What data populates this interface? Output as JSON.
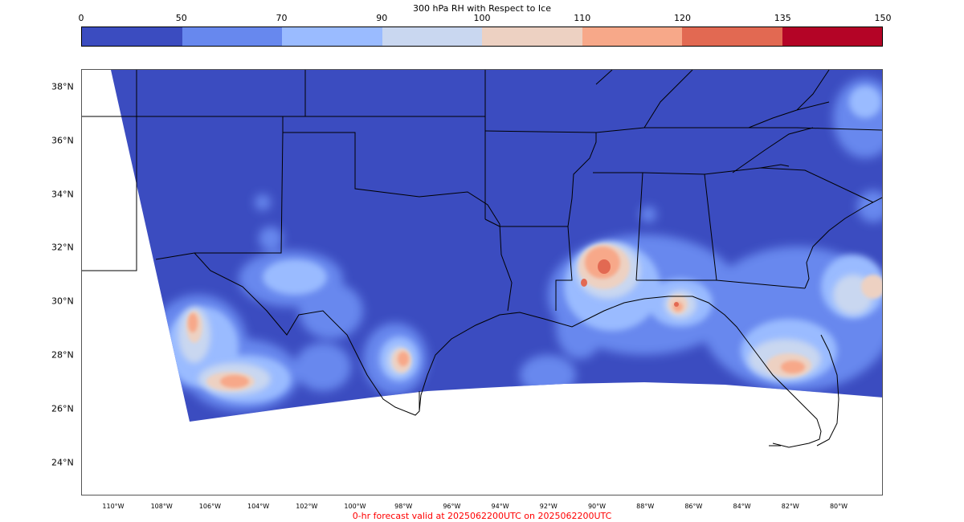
{
  "colorbar": {
    "title": "300 hPa RH with Respect to Ice",
    "ticks": [
      "0",
      "50",
      "70",
      "90",
      "100",
      "110",
      "120",
      "135",
      "150"
    ],
    "colors": [
      "#3b4cc0",
      "#6788ee",
      "#9abbff",
      "#c9d7f0",
      "#edd1c2",
      "#f7a889",
      "#e26952",
      "#b40426"
    ]
  },
  "map": {
    "lat_labels": [
      "38°N",
      "36°N",
      "34°N",
      "32°N",
      "30°N",
      "28°N",
      "26°N",
      "24°N"
    ],
    "lon_labels": [
      "110°W",
      "108°W",
      "106°W",
      "104°W",
      "102°W",
      "100°W",
      "98°W",
      "96°W",
      "94°W",
      "92°W",
      "90°W",
      "88°W",
      "86°W",
      "84°W",
      "82°W",
      "80°W"
    ]
  },
  "footer": "0-hr forecast valid at 2025062200UTC on 2025062200UTC"
}
